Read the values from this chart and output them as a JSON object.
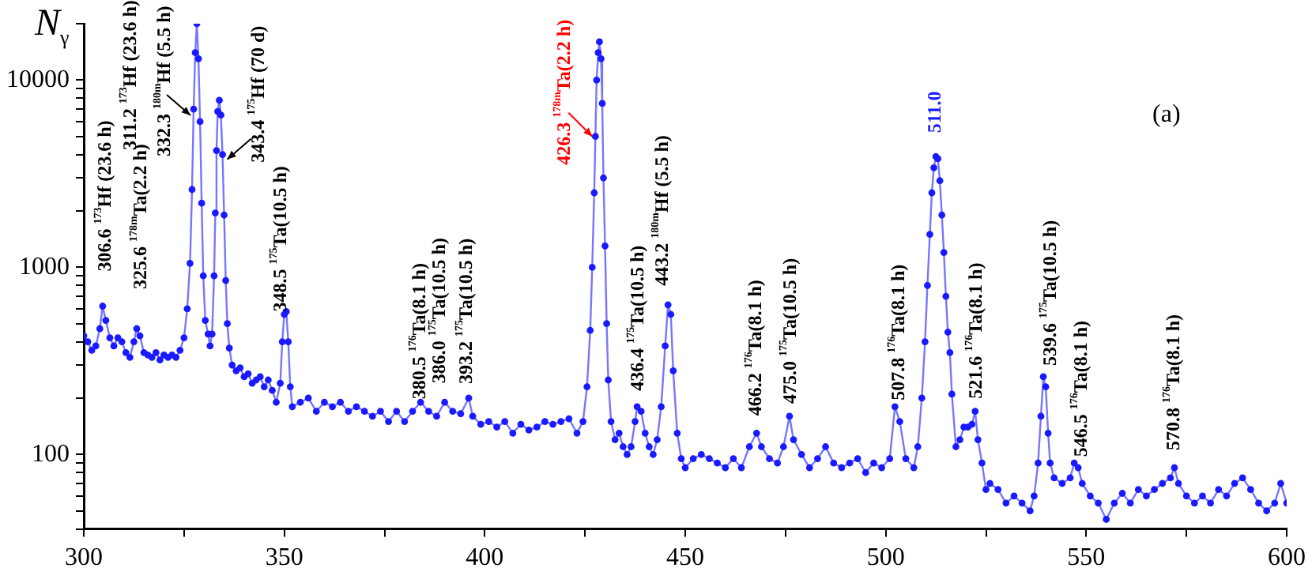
{
  "chart_data": {
    "type": "line",
    "ylabel": "N$_{γ}$",
    "log": "y",
    "marker": "circle",
    "line_style": "solid",
    "grid": false,
    "legend": false,
    "xlim": [
      300,
      600
    ],
    "xticks": [
      300,
      {
        "value": 325,
        "label": null
      },
      350,
      {
        "value": 375,
        "label": null
      },
      400,
      {
        "value": 425,
        "label": null
      },
      450,
      {
        "value": 475,
        "label": null
      },
      500,
      {
        "value": 525,
        "label": null
      },
      550,
      {
        "value": 575,
        "label": null
      },
      600
    ],
    "ylim": [
      40,
      20000
    ],
    "yticks": [
      {
        "value": 40,
        "label": null
      },
      {
        "value": 50,
        "label": null
      },
      {
        "value": 60,
        "label": null
      },
      {
        "value": 70,
        "label": null
      },
      {
        "value": 80,
        "label": null
      },
      {
        "value": 90,
        "label": null
      },
      100,
      {
        "value": 200,
        "label": null
      },
      {
        "value": 300,
        "label": null
      },
      {
        "value": 400,
        "label": null
      },
      {
        "value": 500,
        "label": null
      },
      {
        "value": 600,
        "label": null
      },
      {
        "value": 700,
        "label": null
      },
      {
        "value": 800,
        "label": null
      },
      {
        "value": 900,
        "label": null
      },
      1000,
      {
        "value": 2000,
        "label": null
      },
      {
        "value": 3000,
        "label": null
      },
      {
        "value": 4000,
        "label": null
      },
      {
        "value": 5000,
        "label": null
      },
      {
        "value": 6000,
        "label": null
      },
      {
        "value": 7000,
        "label": null
      },
      {
        "value": 8000,
        "label": null
      },
      {
        "value": 9000,
        "label": null
      },
      10000,
      {
        "value": 20000,
        "label": null
      }
    ],
    "series": [
      {
        "color": "#1a1aff",
        "x": [
          300,
          301,
          302,
          303,
          304,
          304.7,
          305.5,
          306.5,
          307.5,
          308.5,
          309.5,
          310.5,
          311.5,
          312.5,
          313.2,
          314,
          315,
          316,
          317,
          318,
          319,
          320,
          321,
          322,
          323,
          324,
          325,
          325.8,
          326.5,
          327,
          327.4,
          327.8,
          328.2,
          328.6,
          329,
          329.4,
          329.8,
          330.3,
          331,
          331.5,
          332,
          332.5,
          332.8,
          333.1,
          333.4,
          333.8,
          334.2,
          334.6,
          335,
          335.4,
          335.8,
          336.3,
          337,
          338,
          339,
          340,
          341,
          342,
          343,
          344,
          345,
          346,
          347,
          348,
          349,
          349.5,
          350,
          350.5,
          351,
          351.5,
          352,
          354,
          356,
          358,
          360,
          362,
          364,
          366,
          368,
          370,
          372,
          374,
          376,
          378,
          380,
          382,
          384,
          386,
          388,
          390,
          392,
          394,
          396,
          397,
          399,
          401,
          403,
          405,
          407,
          409,
          411,
          413,
          415,
          417,
          419,
          421,
          423,
          424.5,
          425.5,
          426.3,
          426.8,
          427.3,
          427.6,
          427.9,
          428.3,
          428.6,
          429,
          429.3,
          429.6,
          430,
          430.4,
          430.8,
          431.5,
          432.5,
          433.5,
          434.5,
          435.5,
          436.5,
          437.5,
          438,
          439,
          440,
          441,
          442,
          443,
          444,
          445,
          445.7,
          446.4,
          447,
          448,
          449,
          450,
          452,
          454,
          456,
          458,
          460,
          462,
          464,
          466,
          467.8,
          469,
          471,
          473,
          474.5,
          476,
          477,
          479,
          481,
          483,
          485,
          487,
          489,
          491,
          493,
          495,
          497,
          499,
          501,
          502.3,
          503.5,
          505,
          507,
          508,
          509,
          509.8,
          510.4,
          511,
          511.5,
          512,
          512.5,
          513,
          513.5,
          514,
          514.5,
          515,
          515.5,
          516,
          516.5,
          517.5,
          518.5,
          519.5,
          520.5,
          521.5,
          522.3,
          523,
          524,
          525,
          526,
          528,
          530,
          532,
          534,
          536,
          537,
          538,
          538.7,
          539.3,
          539.9,
          540.5,
          541,
          542,
          544,
          546,
          547,
          548,
          549,
          551,
          553,
          555,
          557,
          559,
          561,
          563,
          565,
          567,
          569,
          571,
          572,
          573,
          575,
          577,
          579,
          581,
          583,
          585,
          587,
          589,
          591,
          593,
          595,
          597,
          598.5,
          600
        ],
        "values": [
          430,
          400,
          360,
          380,
          470,
          620,
          520,
          420,
          380,
          420,
          400,
          350,
          330,
          400,
          470,
          430,
          350,
          340,
          330,
          350,
          320,
          340,
          330,
          340,
          330,
          360,
          420,
          600,
          1050,
          2600,
          7000,
          14000,
          20000,
          13000,
          6000,
          2200,
          900,
          520,
          440,
          380,
          440,
          900,
          1950,
          4200,
          6800,
          7800,
          6500,
          4000,
          1900,
          850,
          500,
          370,
          300,
          280,
          290,
          260,
          270,
          240,
          250,
          260,
          230,
          250,
          220,
          190,
          240,
          400,
          560,
          580,
          400,
          230,
          180,
          190,
          200,
          170,
          190,
          180,
          190,
          170,
          180,
          170,
          160,
          170,
          150,
          170,
          150,
          170,
          190,
          170,
          160,
          190,
          170,
          165,
          200,
          160,
          145,
          150,
          140,
          150,
          130,
          145,
          135,
          140,
          150,
          145,
          150,
          155,
          130,
          150,
          230,
          460,
          1000,
          2500,
          5000,
          10000,
          14000,
          16000,
          13000,
          7500,
          3000,
          1300,
          500,
          250,
          150,
          120,
          130,
          110,
          100,
          110,
          150,
          180,
          170,
          130,
          110,
          100,
          120,
          180,
          380,
          630,
          560,
          280,
          130,
          95,
          85,
          95,
          100,
          95,
          90,
          85,
          95,
          85,
          110,
          130,
          110,
          95,
          90,
          110,
          160,
          120,
          100,
          85,
          95,
          110,
          90,
          85,
          90,
          95,
          80,
          90,
          85,
          95,
          180,
          150,
          95,
          85,
          110,
          200,
          400,
          800,
          1500,
          2500,
          3400,
          3900,
          3800,
          2900,
          1900,
          1200,
          700,
          450,
          350,
          210,
          110,
          120,
          140,
          140,
          145,
          170,
          120,
          90,
          65,
          70,
          65,
          55,
          60,
          55,
          50,
          60,
          90,
          160,
          260,
          230,
          130,
          90,
          75,
          70,
          75,
          90,
          85,
          70,
          60,
          55,
          45,
          55,
          62,
          55,
          65,
          60,
          65,
          70,
          75,
          85,
          70,
          60,
          55,
          60,
          55,
          65,
          60,
          70,
          75,
          65,
          55,
          50,
          55,
          70,
          55
        ]
      }
    ],
    "annotations": [
      {
        "text": "306.6 $^{173}$Hf (23.6 h)",
        "x": 304.7,
        "y": 620
      },
      "311.2 $^{173}$Hf (23.6 h)",
      {
        "text": "325.6 $^{178m}$Ta(2.2 h)",
        "x": 313.2,
        "y": 470
      },
      {
        "text": "332.3 $^{180m}$Hf (5.5 h)",
        "x": 327.4,
        "y": 7000
      },
      {
        "text": "343.4 $^{175}$Hf (70 d)",
        "x": 334.6,
        "y": 4000
      },
      {
        "text": "348.5 $^{175}$Ta(10.5 h)",
        "x": 350.5,
        "y": 580
      },
      {
        "text": "380.5 $^{176}$Ta(8.1 h)",
        "x": 384,
        "y": 190
      },
      {
        "text": "386.0 $^{175}$Ta(10.5 h)",
        "x": 390,
        "y": 190
      },
      {
        "text": "393.2 $^{175}$Ta(10.5 h)",
        "x": 396,
        "y": 200
      },
      {
        "text": "426.3 $^{178m}$Ta(2.2 h)",
        "x": 427.6,
        "y": 5000
      },
      {
        "text": "436.4 $^{175}$Ta(10.5 h)",
        "x": 438,
        "y": 180
      },
      {
        "text": "443.2 $^{180m}$Hf (5.5 h)",
        "x": 445.7,
        "y": 630
      },
      {
        "text": "466.2 $^{176}$Ta(8.1 h)",
        "x": 467.8,
        "y": 130
      },
      {
        "text": "475.0 $^{175}$Ta(10.5 h)",
        "x": 476,
        "y": 160
      },
      {
        "text": "507.8 $^{176}$Ta(8.1 h)",
        "x": 502.3,
        "y": 180
      },
      {
        "text": "511.0",
        "x": 512.5,
        "y": 3900
      },
      {
        "text": "521.6 $^{176}$Ta(8.1 h)",
        "x": 522.3,
        "y": 170
      },
      {
        "text": "539.6 $^{175}$Ta(10.5 h)",
        "x": 539.3,
        "y": 260
      },
      {
        "text": "546.5 $^{176}$Ta(8.1 h)",
        "x": 547,
        "y": 90
      },
      {
        "text": "570.8 $^{176}$Ta(8.1 h)",
        "x": 572,
        "y": 85
      },
      "(a)"
    ]
  }
}
